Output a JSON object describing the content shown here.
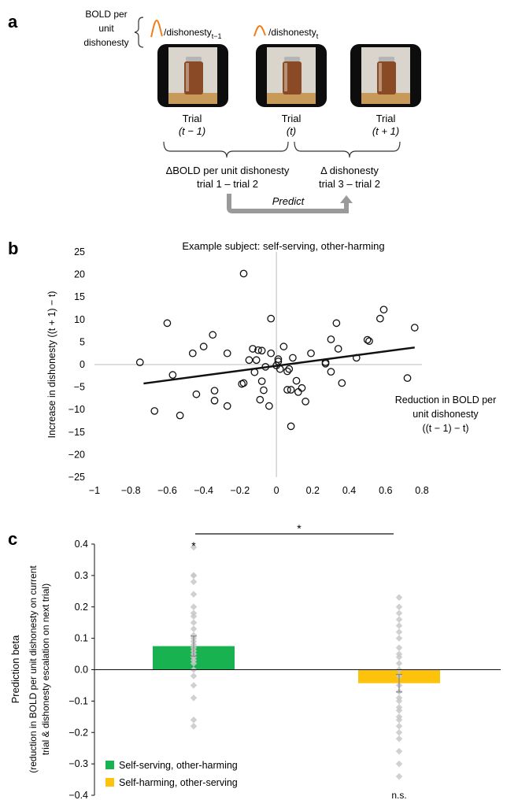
{
  "panel_a": {
    "label": "a",
    "bold_per_unit": [
      "BOLD per",
      "unit",
      "dishonesty"
    ],
    "ratio_prev": "/dishonesty",
    "ratio_prev_sub": "t−1",
    "ratio_curr": "/dishonesty",
    "ratio_curr_sub": "t",
    "trials": [
      {
        "label": "Trial",
        "sub": "(t − 1)"
      },
      {
        "label": "Trial",
        "sub": "(t)"
      },
      {
        "label": "Trial",
        "sub": "(t + 1)"
      }
    ],
    "delta_bold": [
      "ΔBOLD per unit dishonesty",
      "trial 1 – trial 2"
    ],
    "delta_dishonesty": [
      "Δ dishonesty",
      "trial 3 – trial 2"
    ],
    "predict": "Predict",
    "colors": {
      "bold_curve": "#f07d1a",
      "arrow": "#999999"
    }
  },
  "chart_data": [
    {
      "panel": "b",
      "type": "scatter",
      "title": "Example subject: self-serving, other-harming",
      "xlabel": [
        "Reduction in BOLD per",
        "unit dishonesty",
        "((t − 1) − t)"
      ],
      "ylabel": "Increase in dishonesty ((t + 1) − t)",
      "xlim": [
        -1,
        0.8
      ],
      "ylim": [
        -25,
        25
      ],
      "xticks": [
        "−1",
        "−0.8",
        "−0.6",
        "−0.4",
        "−0.2",
        "0",
        "0.2",
        "0.4",
        "0.6",
        "0.8"
      ],
      "xtick_values": [
        -1,
        -0.8,
        -0.6,
        -0.4,
        -0.2,
        0,
        0.2,
        0.4,
        0.6,
        0.8
      ],
      "yticks": [
        "25",
        "20",
        "15",
        "10",
        "5",
        "0",
        "−5",
        "−10",
        "−15",
        "−20",
        "−25"
      ],
      "ytick_values": [
        25,
        20,
        15,
        10,
        5,
        0,
        -5,
        -10,
        -15,
        -20,
        -25
      ],
      "fit_line": {
        "x": [
          -0.73,
          0.76
        ],
        "y": [
          -4.2,
          3.8
        ]
      },
      "points": [
        [
          -0.75,
          0.5
        ],
        [
          -0.67,
          -10.3
        ],
        [
          -0.6,
          9.2
        ],
        [
          -0.57,
          -2.3
        ],
        [
          -0.53,
          -11.3
        ],
        [
          -0.46,
          2.5
        ],
        [
          -0.44,
          -6.6
        ],
        [
          -0.4,
          4.0
        ],
        [
          -0.35,
          6.6
        ],
        [
          -0.34,
          -5.8
        ],
        [
          -0.34,
          -8.0
        ],
        [
          -0.27,
          2.5
        ],
        [
          -0.27,
          -9.2
        ],
        [
          -0.18,
          20.2
        ],
        [
          -0.19,
          -4.3
        ],
        [
          -0.18,
          -4.1
        ],
        [
          -0.15,
          1.0
        ],
        [
          -0.13,
          3.5
        ],
        [
          -0.12,
          -1.7
        ],
        [
          -0.11,
          1.0
        ],
        [
          -0.1,
          3.2
        ],
        [
          -0.09,
          -7.8
        ],
        [
          -0.08,
          3.1
        ],
        [
          -0.08,
          -3.7
        ],
        [
          -0.07,
          -5.7
        ],
        [
          -0.06,
          -0.5
        ],
        [
          -0.04,
          -9.2
        ],
        [
          -0.03,
          10.2
        ],
        [
          -0.03,
          2.5
        ],
        [
          0.0,
          -0.2
        ],
        [
          0.01,
          0.7
        ],
        [
          0.01,
          1.2
        ],
        [
          0.02,
          -1.0
        ],
        [
          0.04,
          4.0
        ],
        [
          0.06,
          -1.5
        ],
        [
          0.06,
          -5.6
        ],
        [
          0.07,
          -1.0
        ],
        [
          0.08,
          -5.6
        ],
        [
          0.08,
          -13.7
        ],
        [
          0.09,
          1.5
        ],
        [
          0.11,
          -3.6
        ],
        [
          0.12,
          -6.1
        ],
        [
          0.14,
          -5.2
        ],
        [
          0.16,
          -8.2
        ],
        [
          0.19,
          2.5
        ],
        [
          0.27,
          0.5
        ],
        [
          0.27,
          0.2
        ],
        [
          0.3,
          -1.6
        ],
        [
          0.3,
          5.6
        ],
        [
          0.33,
          9.2
        ],
        [
          0.34,
          3.5
        ],
        [
          0.36,
          -4.1
        ],
        [
          0.44,
          1.5
        ],
        [
          0.5,
          5.5
        ],
        [
          0.51,
          5.2
        ],
        [
          0.57,
          10.2
        ],
        [
          0.59,
          12.2
        ],
        [
          0.72,
          -3.0
        ],
        [
          0.76,
          8.2
        ]
      ]
    },
    {
      "panel": "c",
      "type": "bar",
      "ylabel": "Prediction beta",
      "ylabel2": [
        "(reduction in BOLD per unit dishonesty on current",
        "trial & dishonesty escalation on next trial)"
      ],
      "ylim": [
        -0.4,
        0.4
      ],
      "yticks": [
        "0.4",
        "0.3",
        "0.2",
        "0.1",
        "0.0",
        "−0.1",
        "−0.2",
        "−0.3",
        "−0.4"
      ],
      "ytick_values": [
        0.4,
        0.3,
        0.2,
        0.1,
        0.0,
        -0.1,
        -0.2,
        -0.3,
        -0.4
      ],
      "series": [
        {
          "name": "Self-serving, other-harming",
          "color": "#19b250",
          "value": 0.075,
          "error": 0.032,
          "significance": "*",
          "individual": [
            0.39,
            0.3,
            0.3,
            0.28,
            0.24,
            0.2,
            0.18,
            0.17,
            0.15,
            0.13,
            0.11,
            0.1,
            0.09,
            0.08,
            0.07,
            0.06,
            0.05,
            0.04,
            0.03,
            0.02,
            0.0,
            -0.02,
            -0.05,
            -0.09,
            -0.16,
            -0.18
          ]
        },
        {
          "name": "Self-harming, other-serving",
          "color": "#fdc20b",
          "value": -0.043,
          "error": 0.028,
          "significance": "n.s.",
          "individual": [
            0.23,
            0.2,
            0.18,
            0.16,
            0.14,
            0.12,
            0.1,
            0.07,
            0.05,
            0.04,
            0.02,
            0.0,
            -0.02,
            -0.05,
            -0.07,
            -0.09,
            -0.1,
            -0.12,
            -0.13,
            -0.15,
            -0.16,
            -0.18,
            -0.2,
            -0.22,
            -0.26,
            -0.3,
            -0.34
          ]
        }
      ],
      "comparison": "*"
    }
  ],
  "panel_b_label": "b",
  "panel_c_label": "c"
}
